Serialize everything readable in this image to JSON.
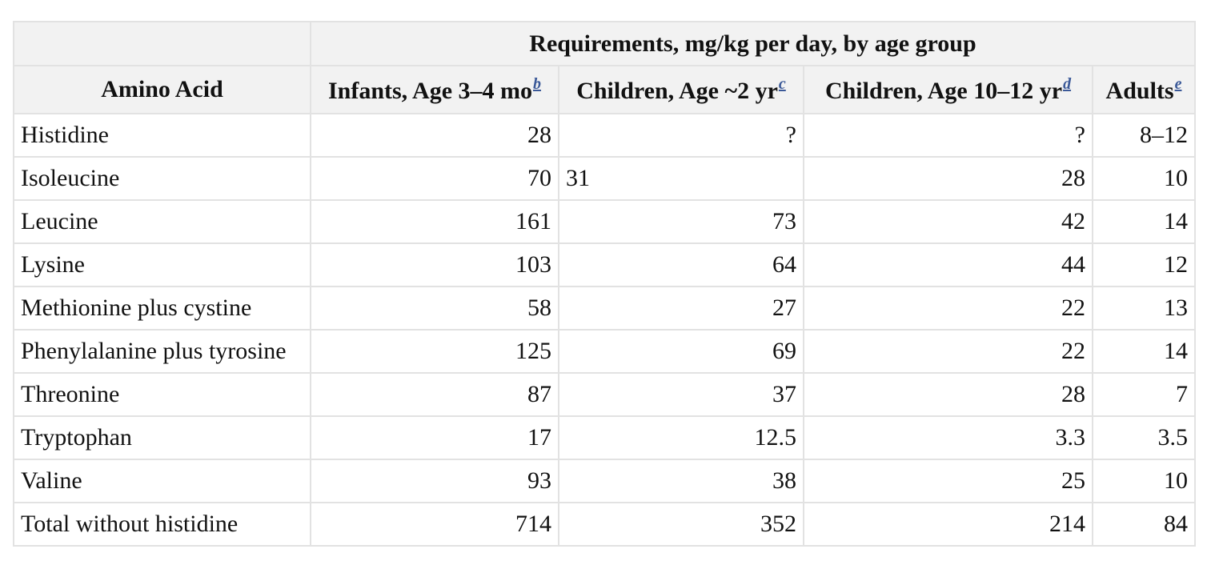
{
  "table": {
    "group_header": "Requirements, mg/kg per day, by age group",
    "col_amino": "Amino Acid",
    "columns": [
      {
        "label": "Infants, Age 3–4 mo",
        "footnote": "b"
      },
      {
        "label": "Children, Age ~2 yr",
        "footnote": "c"
      },
      {
        "label": "Children, Age 10–12 yr",
        "footnote": "d"
      },
      {
        "label": "Adults",
        "footnote": "e"
      }
    ],
    "rows": [
      {
        "name": "Histidine",
        "values": [
          "28",
          "?",
          "?",
          "8–12"
        ]
      },
      {
        "name": "Isoleucine",
        "values": [
          "70",
          "31",
          "28",
          "10"
        ]
      },
      {
        "name": "Leucine",
        "values": [
          "161",
          "73",
          "42",
          "14"
        ]
      },
      {
        "name": "Lysine",
        "values": [
          "103",
          "64",
          "44",
          "12"
        ]
      },
      {
        "name": "Methionine plus cystine",
        "values": [
          "58",
          "27",
          "22",
          "13"
        ]
      },
      {
        "name": "Phenylalanine plus tyrosine",
        "values": [
          "125",
          "69",
          "22",
          "14"
        ]
      },
      {
        "name": "Threonine",
        "values": [
          "87",
          "37",
          "28",
          "7"
        ]
      },
      {
        "name": "Tryptophan",
        "values": [
          "17",
          "12.5",
          "3.3",
          "3.5"
        ]
      },
      {
        "name": "Valine",
        "values": [
          "93",
          "38",
          "25",
          "10"
        ]
      },
      {
        "name": "Total without histidine",
        "values": [
          "714",
          "352",
          "214",
          "84"
        ]
      }
    ]
  }
}
